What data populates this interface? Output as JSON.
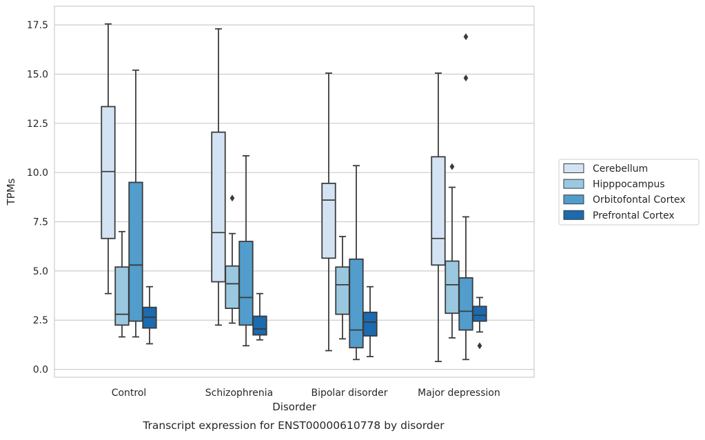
{
  "chart_data": {
    "type": "boxplot",
    "title": "",
    "caption": "Transcript expression for ENST00000610778 by disorder",
    "xlabel": "Disorder",
    "ylabel": "TPMs",
    "ylim": [
      -0.4,
      18.45
    ],
    "y_ticks": [
      0.0,
      2.5,
      5.0,
      7.5,
      10.0,
      12.5,
      15.0,
      17.5
    ],
    "y_tick_labels": [
      "0.0",
      "2.5",
      "5.0",
      "7.5",
      "10.0",
      "12.5",
      "15.0",
      "17.5"
    ],
    "grid": "horizontal",
    "legend_position": "right",
    "categories": [
      "Control",
      "Schizophrenia",
      "Bipolar disorder",
      "Major depression"
    ],
    "series": [
      {
        "name": "Cerebellum",
        "color": "#d3e3f3",
        "boxes": [
          {
            "whisker_low": 3.85,
            "q1": 6.65,
            "median": 10.05,
            "q3": 13.35,
            "whisker_high": 17.55,
            "outliers": []
          },
          {
            "whisker_low": 2.25,
            "q1": 4.45,
            "median": 6.95,
            "q3": 12.05,
            "whisker_high": 17.3,
            "outliers": []
          },
          {
            "whisker_low": 0.95,
            "q1": 5.65,
            "median": 8.6,
            "q3": 9.45,
            "whisker_high": 15.05,
            "outliers": []
          },
          {
            "whisker_low": 0.4,
            "q1": 5.3,
            "median": 6.65,
            "q3": 10.8,
            "whisker_high": 15.05,
            "outliers": []
          }
        ]
      },
      {
        "name": "Hipppocampus",
        "color": "#9ac8e0",
        "boxes": [
          {
            "whisker_low": 1.65,
            "q1": 2.25,
            "median": 2.8,
            "q3": 5.2,
            "whisker_high": 7.0,
            "outliers": []
          },
          {
            "whisker_low": 2.35,
            "q1": 3.1,
            "median": 4.35,
            "q3": 5.25,
            "whisker_high": 6.9,
            "outliers": [
              8.7
            ]
          },
          {
            "whisker_low": 1.55,
            "q1": 2.8,
            "median": 4.3,
            "q3": 5.2,
            "whisker_high": 6.75,
            "outliers": []
          },
          {
            "whisker_low": 1.6,
            "q1": 2.85,
            "median": 4.3,
            "q3": 5.5,
            "whisker_high": 9.25,
            "outliers": [
              10.3
            ]
          }
        ]
      },
      {
        "name": "Orbitofontal Cortex",
        "color": "#529dcc",
        "boxes": [
          {
            "whisker_low": 1.65,
            "q1": 2.45,
            "median": 5.3,
            "q3": 9.5,
            "whisker_high": 15.2,
            "outliers": []
          },
          {
            "whisker_low": 1.2,
            "q1": 2.25,
            "median": 3.65,
            "q3": 6.5,
            "whisker_high": 10.85,
            "outliers": []
          },
          {
            "whisker_low": 0.5,
            "q1": 1.1,
            "median": 2.0,
            "q3": 5.6,
            "whisker_high": 10.35,
            "outliers": []
          },
          {
            "whisker_low": 0.5,
            "q1": 2.0,
            "median": 2.95,
            "q3": 4.65,
            "whisker_high": 7.75,
            "outliers": [
              14.8,
              16.9
            ]
          }
        ]
      },
      {
        "name": "Prefrontal Cortex",
        "color": "#1c6aaf",
        "boxes": [
          {
            "whisker_low": 1.3,
            "q1": 2.1,
            "median": 2.65,
            "q3": 3.15,
            "whisker_high": 4.2,
            "outliers": []
          },
          {
            "whisker_low": 1.5,
            "q1": 1.75,
            "median": 2.05,
            "q3": 2.7,
            "whisker_high": 3.85,
            "outliers": []
          },
          {
            "whisker_low": 0.65,
            "q1": 1.7,
            "median": 2.4,
            "q3": 2.9,
            "whisker_high": 4.2,
            "outliers": []
          },
          {
            "whisker_low": 1.9,
            "q1": 2.45,
            "median": 2.75,
            "q3": 3.2,
            "whisker_high": 3.65,
            "outliers": [
              1.2
            ]
          }
        ]
      }
    ]
  }
}
